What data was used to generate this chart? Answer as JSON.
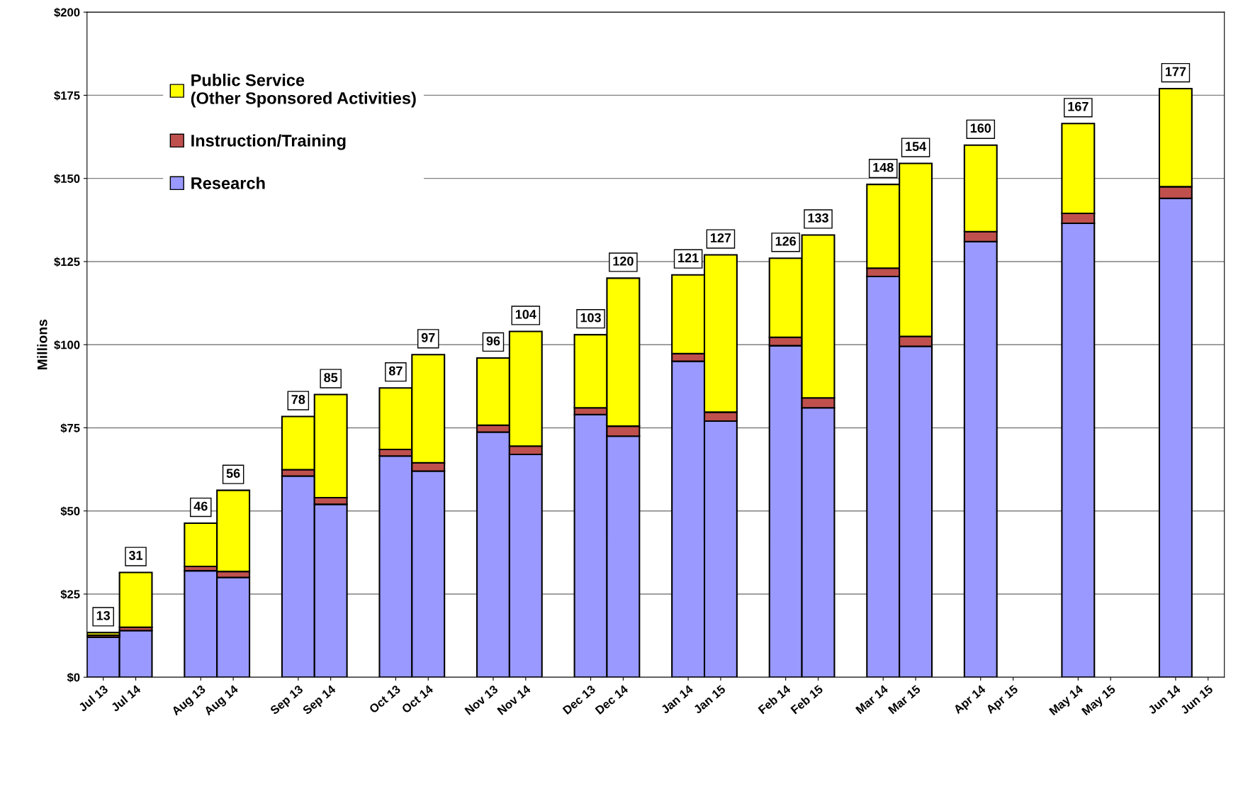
{
  "chart_data": {
    "type": "bar",
    "stacked": true,
    "ylabel": "Millions",
    "categories": [
      "Jul 13",
      "Jul 14",
      "Aug 13",
      "Aug 14",
      "Sep 13",
      "Sep 14",
      "Oct 13",
      "Oct 14",
      "Nov 13",
      "Nov 14",
      "Dec 13",
      "Dec 14",
      "Jan 14",
      "Jan 15",
      "Feb 14",
      "Feb 15",
      "Mar 14",
      "Mar 15",
      "Apr 14",
      "Apr 15",
      "May 14",
      "May 15",
      "Jun 14",
      "Jun 15"
    ],
    "series": [
      {
        "name": "Research",
        "color": "#9999ff",
        "values": [
          12,
          14,
          32,
          30,
          60.5,
          52,
          66.5,
          62,
          73.7,
          67,
          79,
          72.5,
          95,
          77,
          99.7,
          81,
          120.5,
          99.5,
          131,
          null,
          136.5,
          null,
          144,
          null
        ]
      },
      {
        "name": "Instruction/Training",
        "color": "#c0504d",
        "values": [
          0.6,
          1,
          1.3,
          1.8,
          1.9,
          2,
          2,
          2.5,
          2.1,
          2.5,
          2,
          3,
          2.3,
          2.7,
          2.5,
          3,
          2.5,
          3,
          3,
          null,
          3,
          null,
          3.5,
          null
        ]
      },
      {
        "name": "Public Service\n(Other Sponsored Activities)",
        "color": "#ffff00",
        "values": [
          0.8,
          16.5,
          13,
          24.4,
          16,
          31,
          18.5,
          32.5,
          20.2,
          34.5,
          22,
          44.5,
          23.7,
          47.3,
          23.8,
          49,
          25.2,
          52,
          26,
          null,
          27,
          null,
          29.5,
          null
        ]
      }
    ],
    "totals": [
      "13",
      "31",
      "46",
      "56",
      "78",
      "85",
      "87",
      "97",
      "96",
      "104",
      "103",
      "120",
      "121",
      "127",
      "126",
      "133",
      "148",
      "154",
      "160",
      null,
      "167",
      null,
      "177",
      null
    ],
    "ylim": [
      0,
      200
    ],
    "yticks": [
      {
        "value": 0,
        "label": "$0"
      },
      {
        "value": 25,
        "label": "$25"
      },
      {
        "value": 50,
        "label": "$50"
      },
      {
        "value": 75,
        "label": "$75"
      },
      {
        "value": 100,
        "label": "$100"
      },
      {
        "value": 125,
        "label": "$125"
      },
      {
        "value": 150,
        "label": "$150"
      },
      {
        "value": 175,
        "label": "$175"
      },
      {
        "value": 200,
        "label": "$200"
      }
    ],
    "grid": "y",
    "legend": "top left"
  }
}
